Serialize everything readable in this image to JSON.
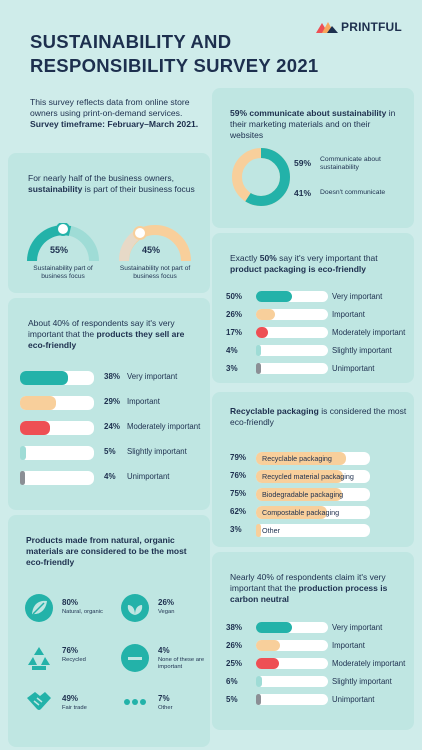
{
  "brand": {
    "name": "PRINTFUL"
  },
  "title_line1": "SUSTAINABILITY AND",
  "title_line2": "RESPONSIBILITY SURVEY 2021",
  "intro": {
    "text": "This survey reflects data from online store owners using print-on-demand services.",
    "bold": "Survey timeframe: February–March 2021."
  },
  "focus": {
    "lead": "For nearly half of the business owners,",
    "bold": "sustainability",
    "tail": "is part of their business focus",
    "a": {
      "value": "55%",
      "label": "Sustainability part of business focus"
    },
    "b": {
      "value": "45%",
      "label": "Sustainability not part of business focus"
    }
  },
  "comm": {
    "bold": "59% communicate about sustainability",
    "tail": "in their marketing materials and on their websites",
    "a": {
      "value": "59%",
      "label": "Communicate about sustainability"
    },
    "b": {
      "value": "41%",
      "label": "Doesn't communicate"
    }
  },
  "products": {
    "lead": "About 40% of respondents say it's very important that the",
    "bold": "products they sell are eco-friendly",
    "rows": [
      {
        "value": "38%",
        "label": "Very important",
        "fraction": 0.38
      },
      {
        "value": "29%",
        "label": "Important",
        "fraction": 0.29
      },
      {
        "value": "24%",
        "label": "Moderately important",
        "fraction": 0.24
      },
      {
        "value": "5%",
        "label": "Slightly important",
        "fraction": 0.05
      },
      {
        "value": "4%",
        "label": "Unimportant",
        "fraction": 0.04
      }
    ]
  },
  "packaging": {
    "lead": "Exactly",
    "bold1": "50%",
    "mid": "say it's very important that",
    "bold2": "product packaging is eco-friendly",
    "rows": [
      {
        "value": "50%",
        "label": "Very important",
        "fraction": 0.5
      },
      {
        "value": "26%",
        "label": "Important",
        "fraction": 0.26
      },
      {
        "value": "17%",
        "label": "Moderately important",
        "fraction": 0.17
      },
      {
        "value": "4%",
        "label": "Slightly important",
        "fraction": 0.04
      },
      {
        "value": "3%",
        "label": "Unimportant",
        "fraction": 0.03
      }
    ]
  },
  "recyclable": {
    "bold": "Recyclable packaging",
    "tail": "is considered the most eco-friendly",
    "rows": [
      {
        "value": "79%",
        "label": "Recyclable packaging",
        "fraction": 0.79
      },
      {
        "value": "76%",
        "label": "Recycled material packaging",
        "fraction": 0.76
      },
      {
        "value": "75%",
        "label": "Biodegradable packaging",
        "fraction": 0.75
      },
      {
        "value": "62%",
        "label": "Compostable packaging",
        "fraction": 0.62
      },
      {
        "value": "3%",
        "label": "Other",
        "fraction": 0.03
      }
    ]
  },
  "natural": {
    "bold": "Products made from natural, organic materials are considered to be the",
    "bold2": "most eco-friendly",
    "items": [
      {
        "value": "80%",
        "label": "Natural, organic",
        "icon": "leaf-icon"
      },
      {
        "value": "26%",
        "label": "Vegan",
        "icon": "sprout-icon"
      },
      {
        "value": "76%",
        "label": "Recycled",
        "icon": "recycle-icon"
      },
      {
        "value": "4%",
        "label": "None of these are important",
        "icon": "minus-icon"
      },
      {
        "value": "49%",
        "label": "Fair trade",
        "icon": "handshake-icon"
      },
      {
        "value": "7%",
        "label": "Other",
        "icon": "dots-icon"
      }
    ]
  },
  "carbon": {
    "lead": "Nearly 40% of respondents claim it's very important that the",
    "bold": "production process is carbon neutral",
    "rows": [
      {
        "value": "38%",
        "label": "Very important",
        "fraction": 0.38
      },
      {
        "value": "26%",
        "label": "Important",
        "fraction": 0.26
      },
      {
        "value": "25%",
        "label": "Moderately important",
        "fraction": 0.25
      },
      {
        "value": "6%",
        "label": "Slightly important",
        "fraction": 0.06
      },
      {
        "value": "5%",
        "label": "Unimportant",
        "fraction": 0.05
      }
    ]
  },
  "colors": {
    "teal": "#23b2a9",
    "peach": "#f8cf9b",
    "red": "#ee4f54",
    "navy": "#1d2f4e"
  }
}
